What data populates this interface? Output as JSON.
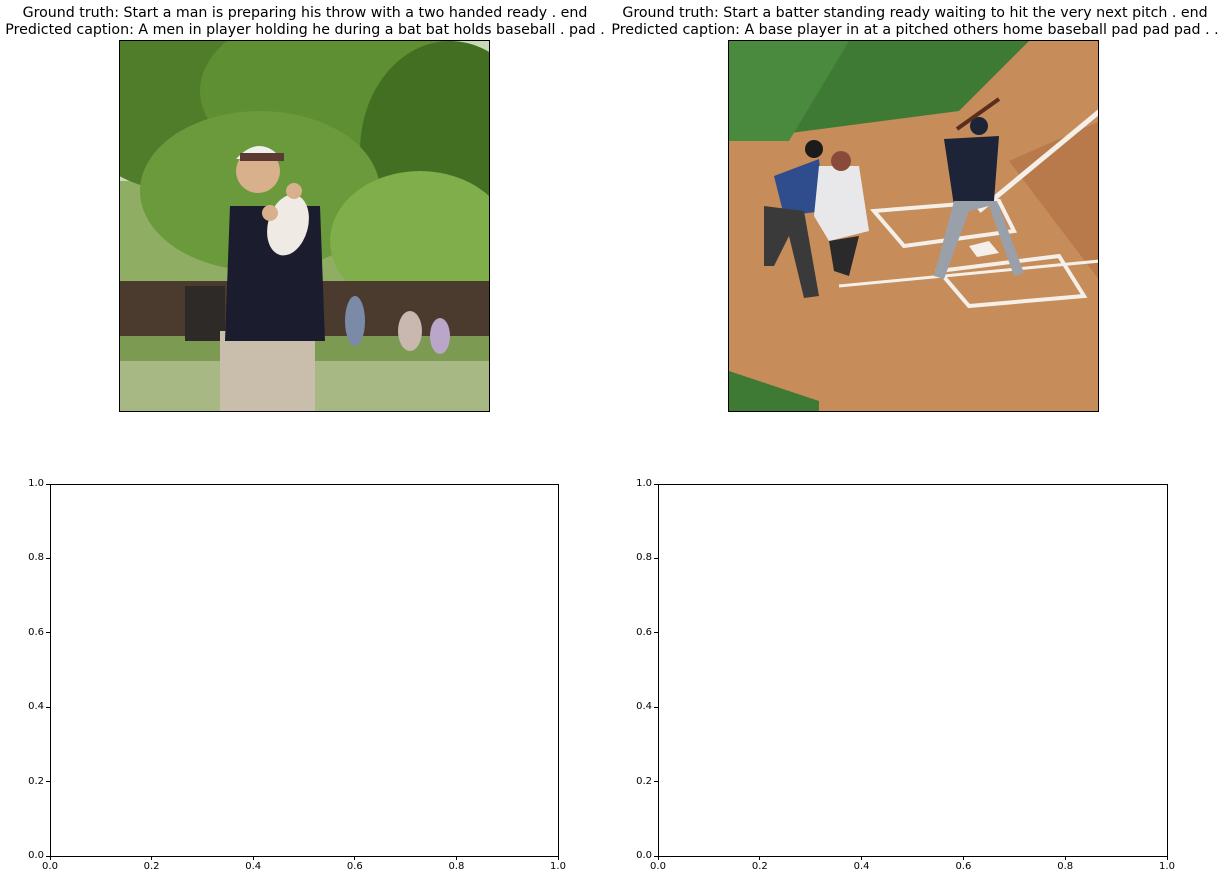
{
  "panels": [
    {
      "ground_truth": "Ground truth: Start a man is preparing his throw with a two handed ready . end",
      "predicted": "Predicted caption: A men in player holding he during a bat bat holds baseball . pad ."
    },
    {
      "ground_truth": "Ground truth: Start a batter standing ready waiting to hit the very next pitch . end",
      "predicted": "Predicted caption: A base player in at a pitched others home baseball pad pad pad . ."
    }
  ],
  "chart_data": [
    {
      "type": "scatter",
      "title": "",
      "xlabel": "",
      "ylabel": "",
      "xlim": [
        0.0,
        1.0
      ],
      "ylim": [
        0.0,
        1.0
      ],
      "xticks": [
        "0.0",
        "0.2",
        "0.4",
        "0.6",
        "0.8",
        "1.0"
      ],
      "yticks": [
        "0.0",
        "0.2",
        "0.4",
        "0.6",
        "0.8",
        "1.0"
      ],
      "series": [],
      "grid": false
    },
    {
      "type": "scatter",
      "title": "",
      "xlabel": "",
      "ylabel": "",
      "xlim": [
        0.0,
        1.0
      ],
      "ylim": [
        0.0,
        1.0
      ],
      "xticks": [
        "0.0",
        "0.2",
        "0.4",
        "0.6",
        "0.8",
        "1.0"
      ],
      "yticks": [
        "0.0",
        "0.2",
        "0.4",
        "0.6",
        "0.8",
        "1.0"
      ],
      "series": [],
      "grid": false
    }
  ]
}
